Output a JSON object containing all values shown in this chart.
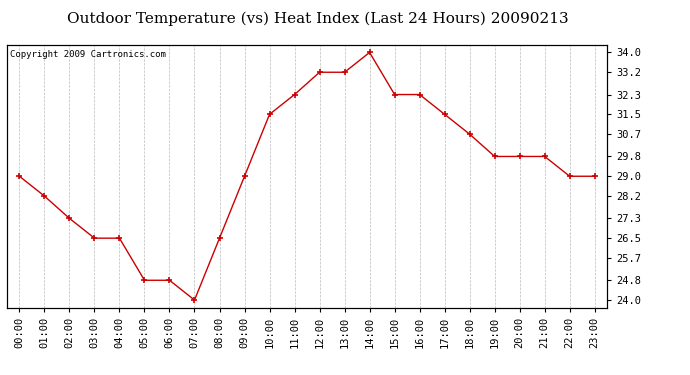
{
  "title": "Outdoor Temperature (vs) Heat Index (Last 24 Hours) 20090213",
  "copyright_text": "Copyright 2009 Cartronics.com",
  "x_labels": [
    "00:00",
    "01:00",
    "02:00",
    "03:00",
    "04:00",
    "05:00",
    "06:00",
    "07:00",
    "08:00",
    "09:00",
    "10:00",
    "11:00",
    "12:00",
    "13:00",
    "14:00",
    "15:00",
    "16:00",
    "17:00",
    "18:00",
    "19:00",
    "20:00",
    "21:00",
    "22:00",
    "23:00"
  ],
  "y_values": [
    29.0,
    28.2,
    27.3,
    26.5,
    26.5,
    24.8,
    24.8,
    24.0,
    26.5,
    29.0,
    31.5,
    32.3,
    33.2,
    33.2,
    34.0,
    32.3,
    32.3,
    31.5,
    30.7,
    29.8,
    29.8,
    29.8,
    29.0,
    29.0
  ],
  "y_right_ticks": [
    24.0,
    24.8,
    25.7,
    26.5,
    27.3,
    28.2,
    29.0,
    29.8,
    30.7,
    31.5,
    32.3,
    33.2,
    34.0
  ],
  "ylim": [
    23.7,
    34.3
  ],
  "line_color": "#cc0000",
  "marker_color": "#cc0000",
  "bg_color": "#ffffff",
  "grid_color": "#bbbbbb",
  "title_fontsize": 11,
  "copyright_fontsize": 6.5,
  "tick_fontsize": 7.5
}
